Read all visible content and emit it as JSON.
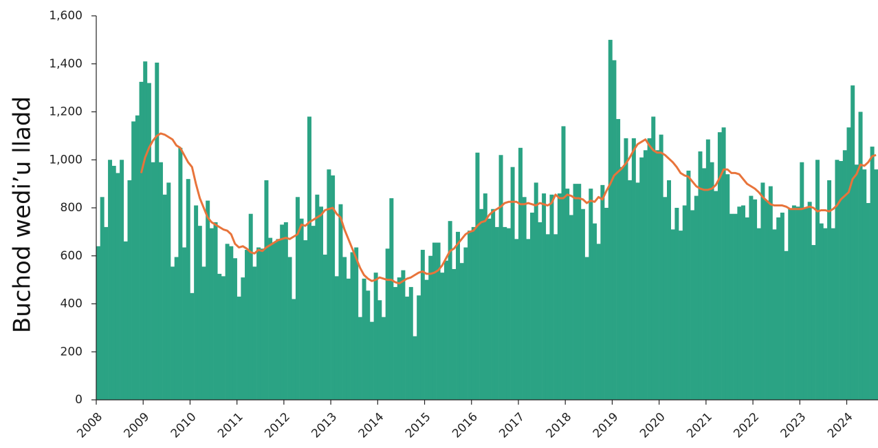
{
  "chart_data": {
    "type": "bar",
    "y_label": "Buchod wedi’u lladd",
    "categories": [
      "2008",
      null,
      null,
      null,
      null,
      null,
      null,
      null,
      null,
      null,
      null,
      null,
      "2009",
      null,
      null,
      null,
      null,
      null,
      null,
      null,
      null,
      null,
      null,
      null,
      "2010",
      null,
      null,
      null,
      null,
      null,
      null,
      null,
      null,
      null,
      null,
      null,
      "2011",
      null,
      null,
      null,
      null,
      null,
      null,
      null,
      null,
      null,
      null,
      null,
      "2012",
      null,
      null,
      null,
      null,
      null,
      null,
      null,
      null,
      null,
      null,
      null,
      "2013",
      null,
      null,
      null,
      null,
      null,
      null,
      null,
      null,
      null,
      null,
      null,
      "2014",
      null,
      null,
      null,
      null,
      null,
      null,
      null,
      null,
      null,
      null,
      null,
      "2015",
      null,
      null,
      null,
      null,
      null,
      null,
      null,
      null,
      null,
      null,
      null,
      "2016",
      null,
      null,
      null,
      null,
      null,
      null,
      null,
      null,
      null,
      null,
      null,
      "2017",
      null,
      null,
      null,
      null,
      null,
      null,
      null,
      null,
      null,
      null,
      null,
      "2018",
      null,
      null,
      null,
      null,
      null,
      null,
      null,
      null,
      null,
      null,
      null,
      "2019",
      null,
      null,
      null,
      null,
      null,
      null,
      null,
      null,
      null,
      null,
      null,
      "2020",
      null,
      null,
      null,
      null,
      null,
      null,
      null,
      null,
      null,
      null,
      null,
      "2021",
      null,
      null,
      null,
      null,
      null,
      null,
      null,
      null,
      null,
      null,
      null,
      "2022",
      null,
      null,
      null,
      null,
      null,
      null,
      null,
      null,
      null,
      null,
      null,
      "2023",
      null,
      null,
      null,
      null,
      null,
      null,
      null,
      null,
      null,
      null,
      null,
      "2024",
      null,
      null,
      null,
      null,
      null,
      null,
      null
    ],
    "series": [
      {
        "type": "bar",
        "color": "#2ba384",
        "values": [
          640,
          845,
          720,
          1000,
          975,
          945,
          1000,
          660,
          915,
          1160,
          1185,
          1325,
          1410,
          1320,
          990,
          1405,
          990,
          855,
          905,
          555,
          595,
          1050,
          635,
          920,
          445,
          810,
          725,
          555,
          830,
          715,
          740,
          525,
          515,
          650,
          640,
          590,
          430,
          510,
          625,
          775,
          555,
          635,
          630,
          915,
          675,
          655,
          670,
          730,
          740,
          595,
          420,
          845,
          755,
          665,
          1180,
          725,
          855,
          805,
          605,
          960,
          935,
          515,
          815,
          595,
          505,
          615,
          635,
          345,
          505,
          455,
          325,
          530,
          415,
          345,
          630,
          840,
          470,
          510,
          540,
          430,
          470,
          265,
          435,
          625,
          500,
          600,
          655,
          655,
          530,
          580,
          745,
          545,
          700,
          570,
          635,
          705,
          720,
          1030,
          795,
          860,
          755,
          795,
          720,
          1020,
          720,
          715,
          970,
          670,
          1050,
          845,
          670,
          780,
          905,
          740,
          860,
          690,
          855,
          690,
          860,
          1140,
          880,
          770,
          900,
          900,
          795,
          595,
          880,
          735,
          650,
          895,
          800,
          1500,
          1415,
          1170,
          970,
          1090,
          915,
          1090,
          905,
          1010,
          1040,
          1090,
          1180,
          1040,
          1105,
          845,
          915,
          710,
          800,
          705,
          810,
          955,
          790,
          850,
          1035,
          965,
          1085,
          990,
          870,
          1115,
          1135,
          940,
          775,
          775,
          805,
          810,
          760,
          850,
          835,
          715,
          905,
          830,
          890,
          710,
          760,
          780,
          620,
          795,
          810,
          805,
          990,
          800,
          825,
          645,
          1000,
          735,
          715,
          915,
          715,
          1000,
          995,
          1040,
          1135,
          1310,
          980,
          1200,
          960,
          820,
          1055,
          960
        ]
      },
      {
        "type": "line",
        "color": "#e8743b",
        "values": [
          null,
          null,
          null,
          null,
          null,
          null,
          null,
          null,
          null,
          null,
          null,
          945,
          1010,
          1050,
          1080,
          1100,
          1110,
          1105,
          1095,
          1085,
          1060,
          1050,
          1020,
          990,
          970,
          900,
          840,
          800,
          760,
          740,
          730,
          720,
          710,
          705,
          690,
          650,
          635,
          640,
          630,
          615,
          610,
          625,
          620,
          635,
          645,
          655,
          665,
          670,
          675,
          670,
          680,
          690,
          730,
          725,
          740,
          750,
          760,
          770,
          790,
          795,
          800,
          775,
          760,
          710,
          670,
          630,
          590,
          550,
          520,
          505,
          495,
          500,
          510,
          505,
          500,
          500,
          490,
          485,
          495,
          505,
          510,
          520,
          530,
          535,
          525,
          525,
          530,
          540,
          560,
          590,
          620,
          630,
          650,
          670,
          690,
          700,
          705,
          725,
          740,
          745,
          770,
          785,
          795,
          805,
          820,
          825,
          825,
          825,
          815,
          815,
          820,
          815,
          810,
          820,
          815,
          810,
          820,
          855,
          840,
          840,
          855,
          850,
          840,
          840,
          835,
          820,
          830,
          825,
          845,
          835,
          870,
          900,
          935,
          950,
          965,
          985,
          1010,
          1040,
          1065,
          1075,
          1085,
          1060,
          1040,
          1030,
          1030,
          1020,
          1005,
          990,
          970,
          945,
          935,
          930,
          910,
          890,
          880,
          875,
          875,
          880,
          895,
          925,
          960,
          960,
          945,
          945,
          940,
          920,
          900,
          890,
          880,
          865,
          845,
          830,
          815,
          810,
          810,
          810,
          805,
          795,
          795,
          795,
          795,
          800,
          805,
          800,
          785,
          790,
          790,
          785,
          795,
          810,
          835,
          850,
          865,
          920,
          940,
          980,
          975,
          990,
          1015,
          1020
        ]
      }
    ],
    "ylim": [
      0,
      1600
    ],
    "yticks": [
      0,
      200,
      400,
      600,
      800,
      {
        "value": 1000,
        "label": "1,000"
      },
      {
        "value": 1200,
        "label": "1,200"
      },
      {
        "value": 1400,
        "label": "1,400"
      },
      {
        "value": 1600,
        "label": "1,600"
      }
    ]
  }
}
